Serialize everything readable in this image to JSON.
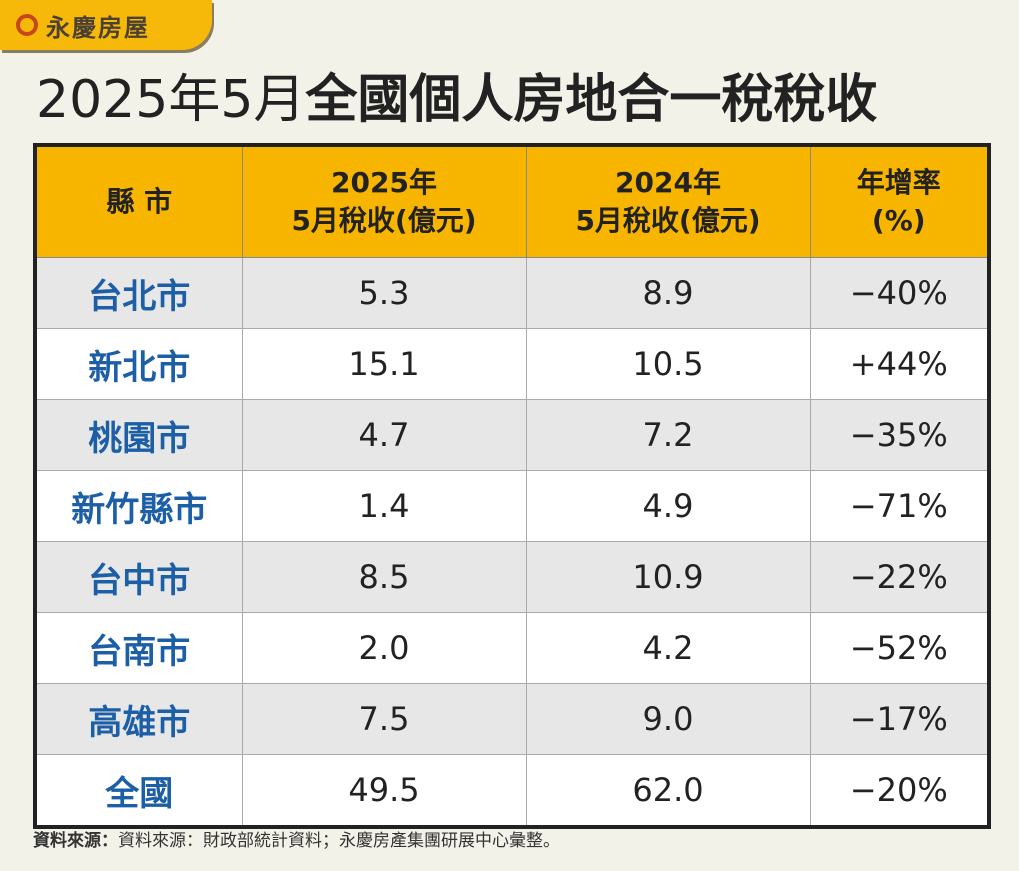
{
  "brand": {
    "name": "永慶房屋",
    "color": "#f6b90a"
  },
  "title": {
    "date": "2025年5月",
    "main": "全國個人房地合一稅稅收"
  },
  "chart_data": {
    "type": "table",
    "title": "2025年5月全國個人房地合一稅稅收",
    "columns": [
      "縣市",
      "2025年\n5月稅收(億元)",
      "2024年\n5月稅收(億元)",
      "年增率\n(%)"
    ],
    "header_lines": [
      [
        "縣 市"
      ],
      [
        "2025年",
        "5月稅收(億元)"
      ],
      [
        "2024年",
        "5月稅收(億元)"
      ],
      [
        "年增率",
        "(%)"
      ]
    ],
    "rows": [
      [
        "台北市",
        "5.3",
        "8.9",
        "−40%"
      ],
      [
        "新北市",
        "15.1",
        "10.5",
        "+44%"
      ],
      [
        "桃園市",
        "4.7",
        "7.2",
        "−35%"
      ],
      [
        "新竹縣市",
        "1.4",
        "4.9",
        "−71%"
      ],
      [
        "台中市",
        "8.5",
        "10.9",
        "−22%"
      ],
      [
        "台南市",
        "2.0",
        "4.2",
        "−52%"
      ],
      [
        "高雄市",
        "7.5",
        "9.0",
        "−17%"
      ],
      [
        "全國",
        "49.5",
        "62.0",
        "−20%"
      ]
    ]
  },
  "colors": {
    "header": "#f7b500",
    "city": "#1d5fa6"
  },
  "footer": {
    "label": "資料來源：",
    "text": "資料來源：財政部統計資料；永慶房產集團研展中心彙整。"
  }
}
